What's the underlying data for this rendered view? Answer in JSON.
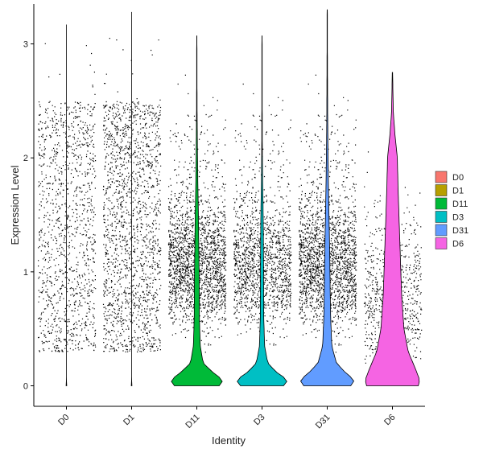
{
  "chart_data": {
    "type": "violin",
    "title": "",
    "xlabel": "Identity",
    "ylabel": "Expression Level",
    "ylim": [
      -0.18,
      3.35
    ],
    "yticks": [
      0,
      1,
      2,
      3
    ],
    "grid": false,
    "legend_position": "right",
    "point_color": "#000000",
    "series": [
      {
        "name": "D0",
        "color": "#F8766D",
        "max": 3.17,
        "points_above_zero": 1200,
        "density_profile": [
          [
            0,
            0.01
          ],
          [
            0.03,
            0.002
          ],
          [
            0.1,
            0.0005
          ],
          [
            3.17,
            0.0005
          ]
        ]
      },
      {
        "name": "D1",
        "color": "#B79F00",
        "max": 3.28,
        "points_above_zero": 1700,
        "density_profile": [
          [
            0,
            0.01
          ],
          [
            0.03,
            0.002
          ],
          [
            0.1,
            0.0005
          ],
          [
            3.28,
            0.0005
          ]
        ]
      },
      {
        "name": "D11",
        "color": "#00BA38",
        "max": 3.07,
        "points_above_zero": 2400,
        "density_profile": [
          [
            0,
            0.78
          ],
          [
            0.05,
            0.92
          ],
          [
            0.12,
            0.55
          ],
          [
            0.2,
            0.22
          ],
          [
            0.35,
            0.12
          ],
          [
            0.6,
            0.09
          ],
          [
            0.9,
            0.085
          ],
          [
            1.2,
            0.07
          ],
          [
            1.5,
            0.055
          ],
          [
            1.8,
            0.035
          ],
          [
            2.1,
            0.02
          ],
          [
            2.4,
            0.01
          ],
          [
            2.7,
            0.005
          ],
          [
            3.07,
            0.004
          ]
        ]
      },
      {
        "name": "D3",
        "color": "#00BFC4",
        "max": 3.07,
        "points_above_zero": 1500,
        "density_profile": [
          [
            0,
            0.75
          ],
          [
            0.05,
            0.9
          ],
          [
            0.12,
            0.5
          ],
          [
            0.2,
            0.2
          ],
          [
            0.35,
            0.09
          ],
          [
            0.6,
            0.06
          ],
          [
            0.9,
            0.055
          ],
          [
            1.2,
            0.05
          ],
          [
            1.5,
            0.04
          ],
          [
            1.8,
            0.02
          ],
          [
            2.1,
            0.01
          ],
          [
            2.5,
            0.006
          ],
          [
            3.07,
            0.004
          ]
        ]
      },
      {
        "name": "D31",
        "color": "#619CFF",
        "max": 3.3,
        "points_above_zero": 3000,
        "density_profile": [
          [
            0,
            0.82
          ],
          [
            0.05,
            0.95
          ],
          [
            0.12,
            0.62
          ],
          [
            0.2,
            0.32
          ],
          [
            0.35,
            0.16
          ],
          [
            0.6,
            0.12
          ],
          [
            0.9,
            0.1
          ],
          [
            1.2,
            0.085
          ],
          [
            1.5,
            0.06
          ],
          [
            1.8,
            0.04
          ],
          [
            2.1,
            0.025
          ],
          [
            2.4,
            0.015
          ],
          [
            2.8,
            0.008
          ],
          [
            3.3,
            0.004
          ]
        ]
      },
      {
        "name": "D6",
        "color": "#F564E3",
        "max": 2.75,
        "points_above_zero": 700,
        "density_profile": [
          [
            0,
            0.9
          ],
          [
            0.05,
            0.95
          ],
          [
            0.15,
            0.8
          ],
          [
            0.3,
            0.55
          ],
          [
            0.5,
            0.4
          ],
          [
            0.8,
            0.32
          ],
          [
            1.1,
            0.28
          ],
          [
            1.4,
            0.24
          ],
          [
            1.7,
            0.2
          ],
          [
            2.0,
            0.17
          ],
          [
            2.2,
            0.09
          ],
          [
            2.4,
            0.03
          ],
          [
            2.75,
            0.006
          ]
        ]
      }
    ]
  }
}
